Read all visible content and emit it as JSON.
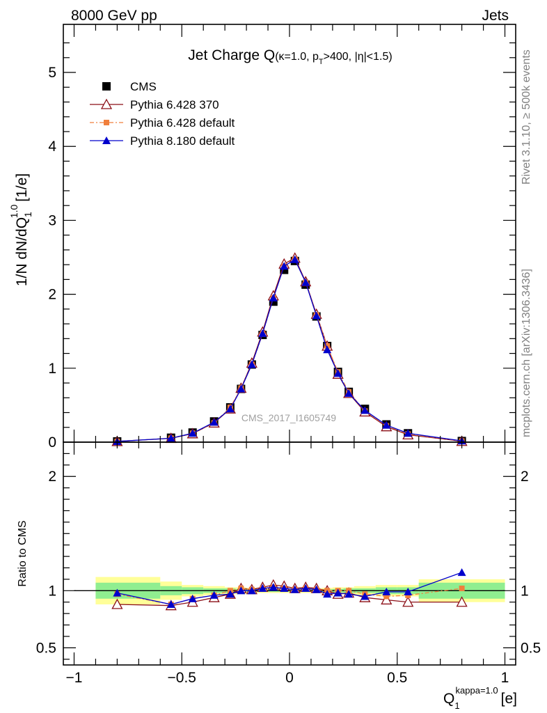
{
  "header": {
    "left": "8000 GeV pp",
    "right": "Jets"
  },
  "side_labels": {
    "rivet": "Rivet 3.1.10, ≥ 500k events",
    "mcplots": "mcplots.cern.ch [arXiv:1306.3436]"
  },
  "watermark": "CMS_2017_I1605749",
  "colors": {
    "cms": "#000000",
    "p6_370": "#8b0e16",
    "p6_default": "#f07f3c",
    "p8": "#0000cc",
    "band_inner": "#90ee90",
    "band_outer": "#ffff99"
  },
  "chart_data": [
    {
      "type": "scatter",
      "panel": "main",
      "title": "Jet Charge Q",
      "title_sub": "(κ=1.0, p",
      "title_sub_T": "T",
      "title_sub_rest": ">400, |η|<1.5)",
      "ylabel": "1/N dN/dQ",
      "ylabel_sub": "1",
      "ylabel_sup": "1.0",
      "ylabel_unit": "[1/e]",
      "xlim": [
        -1.05,
        1.05
      ],
      "ylim": [
        0,
        5.65
      ],
      "y_ticks": [
        "0",
        "1",
        "2",
        "3",
        "4",
        "5"
      ],
      "x": [
        -0.8,
        -0.55,
        -0.45,
        -0.35,
        -0.275,
        -0.225,
        -0.175,
        -0.125,
        -0.075,
        -0.025,
        0.025,
        0.075,
        0.125,
        0.175,
        0.225,
        0.275,
        0.35,
        0.45,
        0.55,
        0.8
      ],
      "series": [
        {
          "name": "CMS",
          "values": [
            0.01,
            0.06,
            0.13,
            0.28,
            0.47,
            0.72,
            1.05,
            1.45,
            1.9,
            2.33,
            2.45,
            2.13,
            1.7,
            1.3,
            0.95,
            0.68,
            0.45,
            0.24,
            0.12,
            0.015
          ]
        },
        {
          "name": "Pythia 6.428 370",
          "values": [
            0.01,
            0.052,
            0.115,
            0.26,
            0.45,
            0.73,
            1.07,
            1.49,
            1.98,
            2.41,
            2.49,
            2.17,
            1.73,
            1.3,
            0.92,
            0.66,
            0.41,
            0.21,
            0.1,
            0.012
          ]
        },
        {
          "name": "Pythia 6.428 default",
          "values": [
            0.01,
            0.053,
            0.12,
            0.26,
            0.47,
            0.73,
            1.05,
            1.46,
            1.95,
            2.38,
            2.47,
            2.16,
            1.72,
            1.3,
            0.95,
            0.68,
            0.42,
            0.22,
            0.11,
            0.015
          ]
        },
        {
          "name": "Pythia 8.180 default",
          "values": [
            0.01,
            0.053,
            0.12,
            0.27,
            0.45,
            0.72,
            1.05,
            1.47,
            1.95,
            2.38,
            2.47,
            2.16,
            1.71,
            1.25,
            0.93,
            0.66,
            0.43,
            0.23,
            0.12,
            0.017
          ]
        }
      ],
      "legend": "top-left"
    },
    {
      "type": "line",
      "panel": "ratio",
      "ylabel": "Ratio to CMS",
      "xlabel": "Q",
      "xlabel_sub": "1",
      "xlabel_sup": "kappa=1.0",
      "xlabel_unit": "[e]",
      "xlim": [
        -1.05,
        1.05
      ],
      "ylim": [
        0.35,
        2.3
      ],
      "x_ticks": [
        "−1",
        "−0.5",
        "0",
        "0.5",
        "1"
      ],
      "y_ticks": [
        "0.5",
        "1",
        "2"
      ],
      "x": [
        -0.8,
        -0.55,
        -0.45,
        -0.35,
        -0.275,
        -0.225,
        -0.175,
        -0.125,
        -0.075,
        -0.025,
        0.025,
        0.075,
        0.125,
        0.175,
        0.225,
        0.275,
        0.35,
        0.45,
        0.55,
        0.8
      ],
      "series": [
        {
          "name": "Pythia 6.428 370",
          "values": [
            0.88,
            0.87,
            0.9,
            0.94,
            0.97,
            1.02,
            1.01,
            1.03,
            1.05,
            1.04,
            1.02,
            1.03,
            1.02,
            1.0,
            0.97,
            0.98,
            0.94,
            0.92,
            0.9,
            0.9
          ]
        },
        {
          "name": "Pythia 6.428 default",
          "values": [
            0.97,
            0.88,
            0.93,
            0.96,
            1.0,
            1.02,
            1.01,
            1.02,
            1.03,
            1.02,
            1.01,
            1.02,
            1.01,
            1.0,
            1.0,
            1.0,
            0.97,
            0.95,
            0.96,
            1.02
          ]
        },
        {
          "name": "Pythia 8.180 default",
          "values": [
            0.98,
            0.88,
            0.93,
            0.96,
            0.97,
            1.0,
            1.0,
            1.02,
            1.03,
            1.02,
            1.01,
            1.02,
            1.01,
            0.97,
            0.98,
            0.97,
            0.95,
            0.99,
            0.99,
            1.16
          ]
        }
      ],
      "bands": {
        "edges": [
          -0.9,
          -0.6,
          -0.5,
          -0.4,
          -0.3,
          -0.25,
          -0.2,
          -0.15,
          -0.1,
          -0.05,
          0.0,
          0.05,
          0.1,
          0.15,
          0.2,
          0.25,
          0.3,
          0.4,
          0.5,
          0.6,
          1.0
        ],
        "inner": [
          0.07,
          0.04,
          0.03,
          0.02,
          0.02,
          0.015,
          0.012,
          0.01,
          0.01,
          0.01,
          0.01,
          0.01,
          0.01,
          0.012,
          0.015,
          0.02,
          0.02,
          0.03,
          0.03,
          0.07
        ],
        "outer": [
          0.12,
          0.08,
          0.05,
          0.04,
          0.03,
          0.03,
          0.025,
          0.02,
          0.02,
          0.02,
          0.02,
          0.02,
          0.02,
          0.025,
          0.03,
          0.03,
          0.04,
          0.05,
          0.05,
          0.1
        ]
      }
    }
  ]
}
